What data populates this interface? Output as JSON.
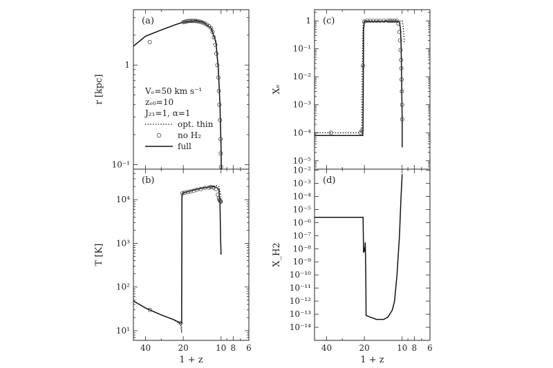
{
  "chart_data": [
    {
      "panel": "a",
      "type": "line",
      "panel_label": "(a)",
      "ylabel": "r [kpc]",
      "xlabel": "",
      "x_scale": "log",
      "y_scale": "log",
      "xlim": [
        50,
        6
      ],
      "ylim": [
        0.09,
        3.6
      ],
      "y_ticks": [
        {
          "v": 1,
          "label": "1"
        },
        {
          "v": 0.1,
          "label": "10⁻¹"
        }
      ],
      "x_ticks": [],
      "legend": {
        "placement": "middle-left",
        "text_lines": [
          "Vₑ=50 km s⁻¹",
          "zₑ₀=10",
          "J₂₁=1, α=1"
        ],
        "entries": [
          {
            "style": "dotted",
            "label": "opt. thin"
          },
          {
            "style": "circle",
            "label": "no H₂"
          },
          {
            "style": "solid",
            "label": "full"
          }
        ]
      },
      "series": [
        {
          "name": "full",
          "style": "solid",
          "x": [
            50,
            40,
            30,
            24,
            20,
            16,
            14,
            12,
            11,
            10.5,
            10.2,
            10,
            9.95
          ],
          "y": [
            1.55,
            1.95,
            2.25,
            2.5,
            2.7,
            2.78,
            2.7,
            2.35,
            1.7,
            0.9,
            0.4,
            0.15,
            0.085
          ]
        },
        {
          "name": "opt. thin",
          "style": "dotted",
          "x": [
            50,
            40,
            30,
            24,
            20,
            16,
            14,
            12,
            11,
            10.5,
            10.2,
            10,
            9.95
          ],
          "y": [
            1.55,
            1.95,
            2.25,
            2.5,
            2.72,
            2.82,
            2.74,
            2.4,
            1.75,
            0.95,
            0.42,
            0.16,
            0.088
          ]
        },
        {
          "name": "no H₂",
          "style": "circles",
          "x": [
            37,
            20,
            19.5,
            19,
            18.5,
            18,
            17.5,
            17,
            16.5,
            16,
            15.5,
            15,
            14.5,
            14,
            13.5,
            13,
            12.5,
            12,
            11.7,
            11.4,
            11.1,
            10.9,
            10.7,
            10.5,
            10.4,
            10.3,
            10.2,
            10.1,
            10.05,
            10
          ],
          "y": [
            1.7,
            2.7,
            2.72,
            2.74,
            2.76,
            2.77,
            2.78,
            2.78,
            2.78,
            2.77,
            2.76,
            2.74,
            2.71,
            2.67,
            2.62,
            2.55,
            2.46,
            2.35,
            2.15,
            1.9,
            1.6,
            1.3,
            1.0,
            0.75,
            0.55,
            0.4,
            0.28,
            0.18,
            0.13,
            0.095
          ]
        }
      ]
    },
    {
      "panel": "b",
      "type": "line",
      "panel_label": "(b)",
      "ylabel": "T [K]",
      "xlabel": "1 + z",
      "x_scale": "log",
      "y_scale": "log",
      "xlim": [
        50,
        6
      ],
      "ylim": [
        6,
        50000
      ],
      "y_ticks": [
        {
          "v": 10,
          "label": "10¹"
        },
        {
          "v": 100,
          "label": "10²"
        },
        {
          "v": 1000,
          "label": "10³"
        },
        {
          "v": 10000,
          "label": "10⁴"
        }
      ],
      "x_ticks": [
        {
          "v": 40,
          "label": "40"
        },
        {
          "v": 20,
          "label": "20"
        },
        {
          "v": 10,
          "label": "10"
        },
        {
          "v": 8,
          "label": "8"
        },
        {
          "v": 6,
          "label": "6"
        }
      ],
      "series": [
        {
          "name": "full",
          "style": "solid",
          "x": [
            50,
            40,
            30,
            24,
            21,
            20.6,
            20.5,
            20.3,
            20,
            18,
            16,
            14,
            12.5,
            11.5,
            10.8,
            10.4,
            10.3,
            10.2,
            10.1,
            10.0
          ],
          "y": [
            48,
            33,
            23,
            18,
            15,
            15,
            12000,
            14000,
            14500,
            15500,
            17000,
            18500,
            19500,
            20000,
            19000,
            17000,
            11000,
            9500,
            1500,
            550
          ]
        },
        {
          "name": "opt. thin",
          "style": "dotted",
          "x": [
            50,
            40,
            30,
            24,
            21,
            20.6,
            20.5,
            20.3,
            20,
            18,
            16,
            14,
            12.5,
            11.5,
            10.8,
            10.4,
            10.3,
            10.2,
            10.1,
            10.0
          ],
          "y": [
            48,
            33,
            23,
            18,
            14,
            9,
            10000,
            13500,
            14500,
            15500,
            17000,
            18500,
            19500,
            20500,
            21000,
            20000,
            18000,
            15000,
            13000,
            12000
          ]
        },
        {
          "name": "no H₂",
          "style": "circles",
          "x": [
            37,
            21,
            20.3,
            19.5,
            18.5,
            17.5,
            16.5,
            15.5,
            14.5,
            13.5,
            12.5,
            12,
            11.5,
            11,
            10.6,
            10.4,
            10.3,
            10.2,
            10.1,
            10.05
          ],
          "y": [
            30,
            15,
            14000,
            14500,
            15000,
            15500,
            16000,
            17000,
            17500,
            18500,
            19000,
            19500,
            19000,
            17500,
            13000,
            11000,
            10000,
            9500,
            9200,
            9000
          ]
        }
      ]
    },
    {
      "panel": "c",
      "type": "line",
      "panel_label": "(c)",
      "ylabel": "Xₑ",
      "xlabel": "",
      "x_scale": "log",
      "y_scale": "log",
      "xlim": [
        50,
        6
      ],
      "ylim": [
        5e-06,
        2.5
      ],
      "y_ticks": [
        {
          "v": 1,
          "label": "1"
        },
        {
          "v": 0.1,
          "label": "10⁻¹"
        },
        {
          "v": 0.01,
          "label": "10⁻²"
        },
        {
          "v": 0.001,
          "label": "10⁻³"
        },
        {
          "v": 0.0001,
          "label": "10⁻⁴"
        },
        {
          "v": 1e-05,
          "label": "10⁻⁵"
        }
      ],
      "x_ticks": [],
      "series": [
        {
          "name": "full",
          "style": "solid",
          "x": [
            50,
            40,
            30,
            24,
            20.6,
            20.5,
            20.3,
            20,
            14,
            12,
            11,
            10.5,
            10.3,
            10.2,
            10.15,
            10.1,
            10.05,
            10.0,
            10.0
          ],
          "y": [
            8e-05,
            8e-05,
            8e-05,
            8e-05,
            8e-05,
            0.0002,
            0.5,
            0.95,
            0.95,
            0.95,
            0.95,
            0.9,
            0.5,
            0.15,
            0.04,
            0.008,
            0.0015,
            0.0003,
            3e-05
          ]
        },
        {
          "name": "opt. thin",
          "style": "dotted",
          "x": [
            50,
            40,
            30,
            24,
            21.5,
            21,
            20.8,
            20.5,
            20,
            14,
            12,
            11,
            10.5,
            10,
            9.8,
            9.6
          ],
          "y": [
            0.0001,
            0.0001,
            0.0001,
            0.0001,
            0.0001,
            0.00011,
            0.02,
            0.9,
            1,
            1,
            1,
            1,
            1,
            1,
            0.6,
            0.15
          ]
        },
        {
          "name": "no H₂",
          "style": "circles",
          "x": [
            37,
            21.5,
            21,
            20.5,
            20,
            19,
            18,
            17,
            16,
            15,
            14,
            13,
            12.5,
            12,
            11.5,
            11,
            10.7,
            10.5,
            10.4,
            10.3,
            10.2,
            10.15,
            10.1,
            10.05,
            10.0,
            10.0
          ],
          "y": [
            0.0001,
            0.0001,
            0.00012,
            0.025,
            0.95,
            1,
            1,
            1,
            1,
            1,
            1,
            1,
            1,
            1,
            1,
            1,
            0.8,
            0.4,
            0.2,
            0.09,
            0.04,
            0.02,
            0.008,
            0.003,
            0.001,
            0.0003
          ]
        }
      ]
    },
    {
      "panel": "d",
      "type": "line",
      "panel_label": "(d)",
      "ylabel": "X_H2",
      "xlabel": "1 + z",
      "x_scale": "log",
      "y_scale": "log",
      "xlim": [
        50,
        6
      ],
      "ylim": [
        1e-15,
        0.012
      ],
      "y_ticks": [
        {
          "v": 0.01,
          "label": "10⁻²"
        },
        {
          "v": 0.001,
          "label": "10⁻³"
        },
        {
          "v": 0.0001,
          "label": "10⁻⁴"
        },
        {
          "v": 1e-05,
          "label": "10⁻⁵"
        },
        {
          "v": 1e-06,
          "label": "10⁻⁶"
        },
        {
          "v": 1e-07,
          "label": "10⁻⁷"
        },
        {
          "v": 1e-08,
          "label": "10⁻⁸"
        },
        {
          "v": 1e-09,
          "label": "10⁻⁹"
        },
        {
          "v": 1e-10,
          "label": "10⁻¹⁰"
        },
        {
          "v": 1e-11,
          "label": "10⁻¹¹"
        },
        {
          "v": 1e-12,
          "label": "10⁻¹²"
        },
        {
          "v": 1e-13,
          "label": "10⁻¹³"
        },
        {
          "v": 1e-14,
          "label": "10⁻¹⁴"
        }
      ],
      "x_ticks": [
        {
          "v": 40,
          "label": "40"
        },
        {
          "v": 20,
          "label": "20"
        },
        {
          "v": 10,
          "label": "10"
        },
        {
          "v": 8,
          "label": "8"
        },
        {
          "v": 6,
          "label": "6"
        }
      ],
      "series": [
        {
          "name": "full",
          "style": "solid",
          "x": [
            50,
            40,
            30,
            24,
            21,
            20.5,
            20.3,
            20.1,
            19.9,
            19.7,
            19.5,
            19.4,
            18,
            16,
            14,
            13,
            12,
            11.5,
            11,
            10.5,
            10.2,
            10.0
          ],
          "y": [
            2.5e-06,
            2.5e-06,
            2.5e-06,
            2.5e-06,
            2.5e-06,
            2.5e-06,
            5e-09,
            1.2e-08,
            6e-09,
            3e-08,
            1e-10,
            8e-14,
            6e-14,
            4e-14,
            4e-14,
            6e-14,
            2e-13,
            1e-12,
            1e-10,
            1e-07,
            0.0001,
            0.005
          ]
        }
      ]
    }
  ]
}
